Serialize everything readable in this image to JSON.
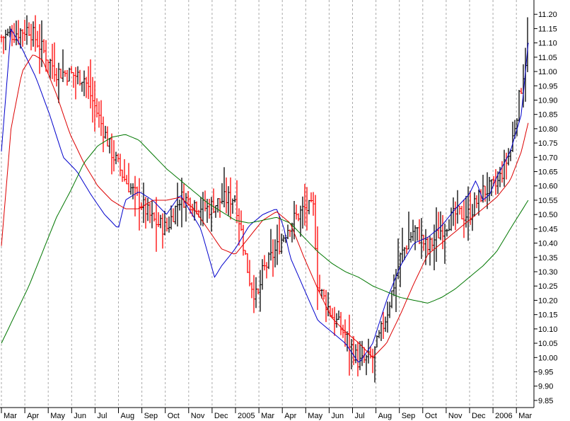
{
  "chart_data": {
    "type": "ohlc",
    "grid": {
      "vertical": true,
      "horizontal": false,
      "style": "dotted"
    },
    "yaxis": {
      "position": "right",
      "ylim": [
        9.83,
        11.25
      ],
      "ticks": [
        "11.20",
        "11.15",
        "11.10",
        "11.05",
        "11.00",
        "10.95",
        "10.90",
        "10.85",
        "10.80",
        "10.75",
        "10.70",
        "10.65",
        "10.60",
        "10.55",
        "10.50",
        "10.45",
        "10.40",
        "10.35",
        "10.30",
        "10.25",
        "10.20",
        "10.15",
        "10.10",
        "10.05",
        "10.00",
        "9.95",
        "9.90",
        "9.85"
      ]
    },
    "xaxis": {
      "months": [
        "Mar",
        "Apr",
        "May",
        "Jun",
        "Jul",
        "Aug",
        "Sep",
        "Oct",
        "Nov",
        "Dec",
        "2005",
        "Mar",
        "Apr",
        "May",
        "Jun",
        "Jul",
        "Aug",
        "Sep",
        "Oct",
        "Nov",
        "Dec",
        "2006",
        "Mar"
      ]
    },
    "series": [
      {
        "style": "bars",
        "up_color": "#000000",
        "down_color": "#ff0000",
        "anchors": [
          [
            0,
            11.12
          ],
          [
            2,
            11.15
          ],
          [
            4,
            11.0
          ],
          [
            6,
            10.98
          ],
          [
            8,
            10.72
          ],
          [
            9,
            10.62
          ],
          [
            10,
            10.55
          ],
          [
            11,
            10.48
          ],
          [
            12,
            10.45
          ],
          [
            13,
            10.56
          ],
          [
            15,
            10.52
          ],
          [
            16,
            10.55
          ],
          [
            17,
            10.56
          ],
          [
            18,
            10.28
          ],
          [
            18.6,
            10.2
          ],
          [
            19,
            10.3
          ],
          [
            20,
            10.38
          ],
          [
            21,
            10.47
          ],
          [
            22,
            10.52
          ],
          [
            22.7,
            10.52
          ],
          [
            23,
            10.25
          ],
          [
            24,
            10.15
          ],
          [
            25,
            10.08
          ],
          [
            26,
            9.98
          ],
          [
            27,
            10.0
          ],
          [
            28,
            10.15
          ],
          [
            29,
            10.35
          ],
          [
            30,
            10.45
          ],
          [
            31,
            10.38
          ],
          [
            32,
            10.45
          ],
          [
            33,
            10.5
          ],
          [
            34,
            10.5
          ],
          [
            35,
            10.58
          ],
          [
            36,
            10.6
          ],
          [
            37,
            10.72
          ],
          [
            37.8,
            10.95
          ],
          [
            38.3,
            11.1
          ]
        ]
      },
      {
        "style": "line",
        "color": "#0000cc",
        "anchors": [
          [
            0,
            10.72
          ],
          [
            0.7,
            11.15
          ],
          [
            1.5,
            11.08
          ],
          [
            2.5,
            10.98
          ],
          [
            3.5,
            10.85
          ],
          [
            4.5,
            10.7
          ],
          [
            5.5,
            10.65
          ],
          [
            6.5,
            10.57
          ],
          [
            7.5,
            10.5
          ],
          [
            8.5,
            10.45
          ],
          [
            9,
            10.55
          ],
          [
            10,
            10.58
          ],
          [
            11,
            10.55
          ],
          [
            12,
            10.5
          ],
          [
            13,
            10.57
          ],
          [
            14.5,
            10.45
          ],
          [
            15.5,
            10.28
          ],
          [
            16,
            10.32
          ],
          [
            17,
            10.38
          ],
          [
            18,
            10.46
          ],
          [
            19,
            10.5
          ],
          [
            20,
            10.52
          ],
          [
            20.5,
            10.46
          ],
          [
            21,
            10.35
          ],
          [
            22,
            10.24
          ],
          [
            23,
            10.13
          ],
          [
            24,
            10.09
          ],
          [
            25,
            10.05
          ],
          [
            26,
            9.98
          ],
          [
            27,
            10.05
          ],
          [
            28,
            10.2
          ],
          [
            29,
            10.32
          ],
          [
            30,
            10.4
          ],
          [
            31,
            10.42
          ],
          [
            32,
            10.46
          ],
          [
            33,
            10.52
          ],
          [
            34,
            10.57
          ],
          [
            34.5,
            10.62
          ],
          [
            35,
            10.55
          ],
          [
            35.5,
            10.57
          ],
          [
            36,
            10.63
          ],
          [
            37,
            10.72
          ],
          [
            37.8,
            10.85
          ],
          [
            38.3,
            11.1
          ]
        ]
      },
      {
        "style": "line",
        "color": "#dd0000",
        "anchors": [
          [
            0,
            10.39
          ],
          [
            0.7,
            10.8
          ],
          [
            1.5,
            11.0
          ],
          [
            2.3,
            11.06
          ],
          [
            3,
            11.04
          ],
          [
            4,
            10.92
          ],
          [
            5,
            10.78
          ],
          [
            6,
            10.68
          ],
          [
            7,
            10.6
          ],
          [
            8,
            10.55
          ],
          [
            9,
            10.52
          ],
          [
            10,
            10.52
          ],
          [
            11,
            10.55
          ],
          [
            12,
            10.55
          ],
          [
            13,
            10.56
          ],
          [
            14,
            10.52
          ],
          [
            15,
            10.45
          ],
          [
            16,
            10.38
          ],
          [
            17,
            10.36
          ],
          [
            18,
            10.42
          ],
          [
            19,
            10.48
          ],
          [
            20,
            10.51
          ],
          [
            21,
            10.47
          ],
          [
            22,
            10.35
          ],
          [
            23,
            10.24
          ],
          [
            24,
            10.14
          ],
          [
            25,
            10.09
          ],
          [
            26,
            10.05
          ],
          [
            27,
            10.0
          ],
          [
            28,
            10.05
          ],
          [
            29,
            10.15
          ],
          [
            30,
            10.26
          ],
          [
            31,
            10.36
          ],
          [
            32,
            10.4
          ],
          [
            33,
            10.44
          ],
          [
            34,
            10.48
          ],
          [
            35,
            10.52
          ],
          [
            36,
            10.56
          ],
          [
            37,
            10.62
          ],
          [
            37.8,
            10.72
          ],
          [
            38.3,
            10.82
          ]
        ]
      },
      {
        "style": "line",
        "color": "#007700",
        "anchors": [
          [
            0,
            10.05
          ],
          [
            1,
            10.15
          ],
          [
            2,
            10.25
          ],
          [
            3,
            10.37
          ],
          [
            4,
            10.49
          ],
          [
            5,
            10.58
          ],
          [
            6,
            10.68
          ],
          [
            7,
            10.74
          ],
          [
            8,
            10.77
          ],
          [
            9,
            10.78
          ],
          [
            10,
            10.76
          ],
          [
            11,
            10.71
          ],
          [
            12,
            10.66
          ],
          [
            13,
            10.62
          ],
          [
            14,
            10.58
          ],
          [
            15,
            10.54
          ],
          [
            16,
            10.51
          ],
          [
            17,
            10.48
          ],
          [
            18,
            10.47
          ],
          [
            19,
            10.48
          ],
          [
            20,
            10.49
          ],
          [
            21,
            10.47
          ],
          [
            22,
            10.42
          ],
          [
            23,
            10.37
          ],
          [
            24,
            10.33
          ],
          [
            25,
            10.3
          ],
          [
            26,
            10.28
          ],
          [
            27,
            10.25
          ],
          [
            28,
            10.23
          ],
          [
            29,
            10.21
          ],
          [
            30,
            10.2
          ],
          [
            31,
            10.19
          ],
          [
            32,
            10.21
          ],
          [
            33,
            10.24
          ],
          [
            34,
            10.28
          ],
          [
            35,
            10.32
          ],
          [
            36,
            10.37
          ],
          [
            37,
            10.45
          ],
          [
            38.3,
            10.55
          ]
        ]
      }
    ]
  }
}
